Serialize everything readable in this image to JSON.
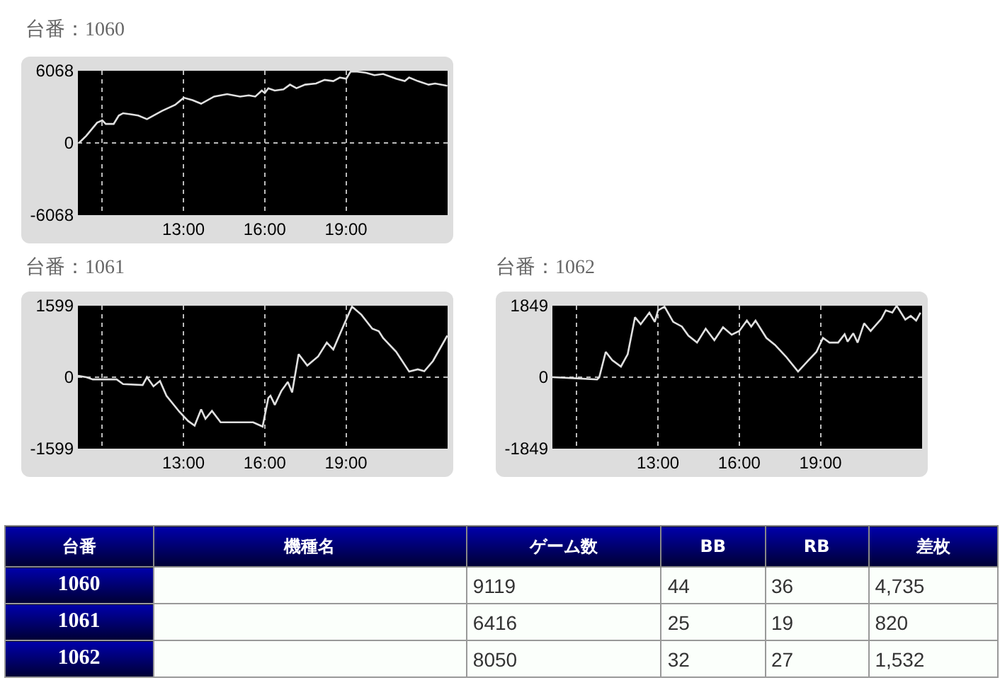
{
  "chart_data": [
    {
      "type": "line",
      "title": "台番：1060",
      "color": "#e0e0e0",
      "xlim": [
        9.1,
        22.75
      ],
      "ylim": [
        -6068,
        6068
      ],
      "yticks": [
        -6068,
        0,
        6068
      ],
      "xticks": [
        {
          "value": 10,
          "label": null
        },
        {
          "value": 13,
          "label": "13:00"
        },
        {
          "value": 16,
          "label": "16:00"
        },
        {
          "value": 19,
          "label": "19:00"
        }
      ],
      "grid": true,
      "x": [
        9.14,
        9.41,
        9.81,
        10.0,
        10.13,
        10.42,
        10.61,
        10.77,
        11.09,
        11.33,
        11.65,
        12.21,
        12.69,
        13.01,
        13.33,
        13.65,
        14.13,
        14.61,
        15.09,
        15.41,
        15.65,
        15.89,
        16.0,
        16.13,
        16.37,
        16.69,
        16.93,
        17.17,
        17.49,
        17.89,
        18.21,
        18.53,
        18.77,
        19.01,
        19.17,
        19.41,
        19.73,
        20.05,
        20.37,
        20.85,
        21.17,
        21.33,
        21.65,
        22.05,
        22.29,
        22.74
      ],
      "values": [
        0,
        600,
        1700,
        1900,
        1600,
        1600,
        2300,
        2500,
        2400,
        2300,
        2000,
        2700,
        3200,
        3800,
        3600,
        3300,
        3900,
        4100,
        3900,
        4000,
        3900,
        4400,
        4200,
        4600,
        4400,
        4500,
        4900,
        4600,
        4900,
        5000,
        5300,
        5200,
        5500,
        5400,
        6000,
        6000,
        5900,
        5700,
        5800,
        5400,
        5200,
        5500,
        5200,
        4900,
        5000,
        4800
      ]
    },
    {
      "type": "line",
      "title": "台番：1061",
      "color": "#e0e0e0",
      "xlim": [
        9.1,
        22.75
      ],
      "ylim": [
        -1599,
        1599
      ],
      "yticks": [
        -1599,
        0,
        1599
      ],
      "xticks": [
        {
          "value": 10,
          "label": null
        },
        {
          "value": 13,
          "label": "13:00"
        },
        {
          "value": 16,
          "label": "16:00"
        },
        {
          "value": 19,
          "label": "19:00"
        }
      ],
      "grid": true,
      "x": [
        9.1,
        9.41,
        9.65,
        10.53,
        10.77,
        11.49,
        11.65,
        11.89,
        12.13,
        12.37,
        12.85,
        13.17,
        13.41,
        13.65,
        13.81,
        14.05,
        14.37,
        14.93,
        15.57,
        15.92,
        16.13,
        16.21,
        16.37,
        16.61,
        16.85,
        17.01,
        17.25,
        17.57,
        17.97,
        18.29,
        18.53,
        18.93,
        19.22,
        19.57,
        19.97,
        20.21,
        20.37,
        20.85,
        21.33,
        21.65,
        21.89,
        22.21,
        22.74
      ],
      "values": [
        30,
        0,
        -50,
        -50,
        -155,
        -175,
        0,
        -205,
        -85,
        -415,
        -775,
        -980,
        -1085,
        -720,
        -930,
        -755,
        -1010,
        -1010,
        -1010,
        -1105,
        -465,
        -415,
        -620,
        -310,
        -105,
        -340,
        515,
        260,
        465,
        775,
        620,
        1185,
        1580,
        1395,
        1085,
        1030,
        875,
        570,
        125,
        175,
        135,
        360,
        930
      ]
    },
    {
      "type": "line",
      "title": "台番：1062",
      "color": "#e0e0e0",
      "xlim": [
        9.1,
        22.75
      ],
      "ylim": [
        -1849,
        1849
      ],
      "yticks": [
        -1849,
        0,
        1849
      ],
      "xticks": [
        {
          "value": 10,
          "label": null
        },
        {
          "value": 13,
          "label": "13:00"
        },
        {
          "value": 16,
          "label": "16:00"
        },
        {
          "value": 19,
          "label": "19:00"
        }
      ],
      "grid": true,
      "x": [
        9.1,
        9.87,
        10.75,
        10.83,
        11.07,
        11.31,
        11.63,
        11.88,
        12.15,
        12.36,
        12.68,
        12.88,
        13.0,
        13.24,
        13.56,
        13.88,
        14.12,
        14.44,
        14.76,
        15.08,
        15.4,
        15.72,
        16.0,
        16.28,
        16.44,
        16.6,
        17.0,
        17.32,
        17.72,
        18.17,
        18.53,
        18.85,
        19.09,
        19.33,
        19.65,
        19.89,
        20.0,
        20.21,
        20.37,
        20.61,
        20.85,
        21.25,
        21.41,
        21.65,
        21.81,
        22.13,
        22.33,
        22.53,
        22.69
      ],
      "values": [
        0,
        -25,
        -60,
        0,
        655,
        440,
        275,
        595,
        1550,
        1370,
        1670,
        1430,
        1730,
        1825,
        1430,
        1310,
        1075,
        895,
        1255,
        955,
        1290,
        1100,
        1195,
        1465,
        1310,
        1465,
        1015,
        835,
        535,
        145,
        420,
        655,
        1015,
        895,
        895,
        1110,
        920,
        1135,
        895,
        1395,
        1195,
        1515,
        1730,
        1670,
        1849,
        1490,
        1585,
        1465,
        1670
      ]
    },
    {
      "type": "other",
      "categories": [
        "台番",
        "機種名",
        "ゲーム数",
        "BB",
        "RB",
        "差枚"
      ],
      "y_categories": [
        "1060",
        "1061",
        "1062"
      ],
      "cell_labels": [
        [
          null,
          "9119",
          "44",
          "36",
          "4,735"
        ],
        [
          null,
          "6416",
          "25",
          "19",
          "820"
        ],
        [
          null,
          "8050",
          "32",
          "27",
          "1,532"
        ]
      ]
    }
  ]
}
